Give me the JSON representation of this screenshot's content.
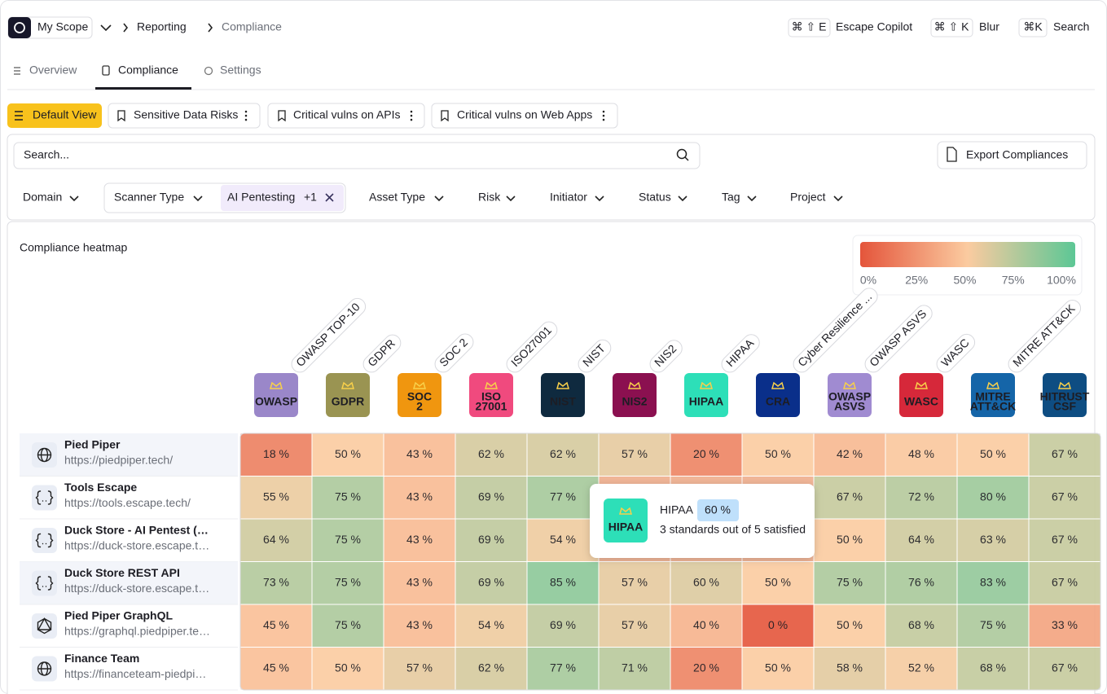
{
  "topbar": {
    "scope": "My Scope",
    "breadcrumbs": [
      "Reporting",
      "Compliance"
    ],
    "shortcuts": [
      {
        "keys": "⌘ ⇧ E",
        "label": "Escape Copilot"
      },
      {
        "keys": "⌘ ⇧ K",
        "label": "Blur"
      },
      {
        "keys": "⌘K",
        "label": "Search"
      }
    ]
  },
  "tabs": [
    "Overview",
    "Compliance",
    "Settings"
  ],
  "views": [
    "Default View",
    "Sensitive Data Risks",
    "Critical vulns on APIs",
    "Critical vulns on Web Apps"
  ],
  "search": {
    "placeholder": "Search...",
    "export": "Export Compliances"
  },
  "filters": {
    "domain": "Domain",
    "scanner": "Scanner Type",
    "chip": "AI Pentesting",
    "chip_count": "+1",
    "others": [
      "Asset Type",
      "Risk",
      "Initiator",
      "Status",
      "Tag",
      "Project"
    ]
  },
  "heatmap": {
    "title": "Compliance heatmap",
    "scale_colors": [
      "#e4553b",
      "#fbcba0",
      "#5cc795"
    ],
    "legend": [
      {
        "value": 0,
        "label": "0%"
      },
      {
        "value": 25,
        "label": "25%"
      },
      {
        "value": 50,
        "label": "50%"
      },
      {
        "value": 75,
        "label": "75%"
      },
      {
        "value": 100,
        "label": "100%"
      }
    ],
    "columns": [
      {
        "name": "OWASP TOP-10",
        "badge": [
          "OWASP"
        ],
        "color": "#9a87c9"
      },
      {
        "name": "GDPR",
        "badge": [
          "GDPR"
        ],
        "color": "#9a9452"
      },
      {
        "name": "SOC 2",
        "badge": [
          "SOC",
          "2"
        ],
        "color": "#f0960f"
      },
      {
        "name": "ISO27001",
        "badge": [
          "ISO",
          "27001"
        ],
        "color": "#f04a7e"
      },
      {
        "name": "NIST",
        "badge": [
          "NIST"
        ],
        "color": "#0f2a3f"
      },
      {
        "name": "NIS2",
        "badge": [
          "NIS2"
        ],
        "color": "#8b1050"
      },
      {
        "name": "HIPAA",
        "badge": [
          "HIPAA"
        ],
        "color": "#2ddfb8"
      },
      {
        "name": "Cyber Resilience ...",
        "badge": [
          "CRA"
        ],
        "color": "#0a2f8a"
      },
      {
        "name": "OWASP ASVS",
        "badge": [
          "OWASP",
          "ASVS"
        ],
        "color": "#a08bd1"
      },
      {
        "name": "WASC",
        "badge": [
          "WASC"
        ],
        "color": "#d6283a"
      },
      {
        "name": "MITRE ATT&CK",
        "badge": [
          "MITRE",
          "ATT&CK"
        ],
        "color": "#1565a8"
      },
      {
        "name": null,
        "badge": [
          "HITRUST",
          "CSF"
        ],
        "color": "#0e4d82"
      }
    ],
    "rows": [
      {
        "name": "Pied Piper",
        "url": "https://piedpiper.tech/",
        "cells": [
          {
            "value": 18,
            "label": "18 %"
          },
          {
            "value": 50,
            "label": "50 %"
          },
          {
            "value": 43,
            "label": "43 %"
          },
          {
            "value": 62,
            "label": "62 %"
          },
          {
            "value": 62,
            "label": "62 %"
          },
          {
            "value": 57,
            "label": "57 %"
          },
          {
            "value": 20,
            "label": "20 %"
          },
          {
            "value": 50,
            "label": "50 %"
          },
          {
            "value": 42,
            "label": "42 %"
          },
          {
            "value": 48,
            "label": "48 %"
          },
          {
            "value": 50,
            "label": "50 %"
          },
          {
            "value": 67,
            "label": "67 %"
          }
        ]
      },
      {
        "name": "Tools Escape",
        "url": "https://tools.escape.tech/",
        "cells": [
          {
            "value": 55,
            "label": "55 %"
          },
          {
            "value": 75,
            "label": "75 %"
          },
          {
            "value": 43,
            "label": "43 %"
          },
          {
            "value": 69,
            "label": "69 %"
          },
          {
            "value": 77,
            "label": "77 %"
          },
          null,
          null,
          null,
          {
            "value": 67,
            "label": "67 %"
          },
          {
            "value": 72,
            "label": "72 %"
          },
          {
            "value": 80,
            "label": "80 %"
          },
          {
            "value": 67,
            "label": "67 %"
          }
        ]
      },
      {
        "name": "Duck Store - AI Pentest (…",
        "url": "https://duck-store.escape.t…",
        "cells": [
          {
            "value": 64,
            "label": "64 %"
          },
          {
            "value": 75,
            "label": "75 %"
          },
          {
            "value": 43,
            "label": "43 %"
          },
          {
            "value": 69,
            "label": "69 %"
          },
          {
            "value": 54,
            "label": "54 %"
          },
          null,
          null,
          null,
          {
            "value": 50,
            "label": "50 %"
          },
          {
            "value": 64,
            "label": "64 %"
          },
          {
            "value": 63,
            "label": "63 %"
          },
          {
            "value": 67,
            "label": "67 %"
          }
        ]
      },
      {
        "name": "Duck Store REST API",
        "url": "https://duck-store.escape.t…",
        "cells": [
          {
            "value": 73,
            "label": "73 %"
          },
          {
            "value": 75,
            "label": "75 %"
          },
          {
            "value": 43,
            "label": "43 %"
          },
          {
            "value": 69,
            "label": "69 %"
          },
          {
            "value": 85,
            "label": "85 %"
          },
          {
            "value": 57,
            "label": "57 %"
          },
          {
            "value": 60,
            "label": "60 %"
          },
          {
            "value": 50,
            "label": "50 %"
          },
          {
            "value": 75,
            "label": "75 %"
          },
          {
            "value": 76,
            "label": "76 %"
          },
          {
            "value": 83,
            "label": "83 %"
          },
          {
            "value": 67,
            "label": "67 %"
          }
        ]
      },
      {
        "name": "Pied Piper GraphQL",
        "url": "https://graphql.piedpiper.te…",
        "cells": [
          {
            "value": 45,
            "label": "45 %"
          },
          {
            "value": 75,
            "label": "75 %"
          },
          {
            "value": 43,
            "label": "43 %"
          },
          {
            "value": 54,
            "label": "54 %"
          },
          {
            "value": 69,
            "label": "69 %"
          },
          {
            "value": 57,
            "label": "57 %"
          },
          {
            "value": 40,
            "label": "40 %"
          },
          {
            "value": 0,
            "label": "0 %"
          },
          {
            "value": 50,
            "label": "50 %"
          },
          {
            "value": 68,
            "label": "68 %"
          },
          {
            "value": 75,
            "label": "75 %"
          },
          {
            "value": 33,
            "label": "33 %"
          }
        ]
      },
      {
        "name": "Finance Team",
        "url": "https://financeteam-piedpi…",
        "cells": [
          {
            "value": 45,
            "label": "45 %"
          },
          {
            "value": 50,
            "label": "50 %"
          },
          {
            "value": 57,
            "label": "57 %"
          },
          {
            "value": 62,
            "label": "62 %"
          },
          {
            "value": 77,
            "label": "77 %"
          },
          {
            "value": 71,
            "label": "71 %"
          },
          {
            "value": 20,
            "label": "20 %"
          },
          {
            "value": 50,
            "label": "50 %"
          },
          {
            "value": 58,
            "label": "58 %"
          },
          {
            "value": 52,
            "label": "52 %"
          },
          {
            "value": 68,
            "label": "68 %"
          },
          {
            "value": 67,
            "label": "67 %"
          }
        ]
      }
    ]
  },
  "tooltip": {
    "badge": [
      "HIPAA"
    ],
    "color": "#2ddfb8",
    "title": "HIPAA",
    "value": "60 %",
    "text": "3 standards out of 5 satisfied"
  }
}
